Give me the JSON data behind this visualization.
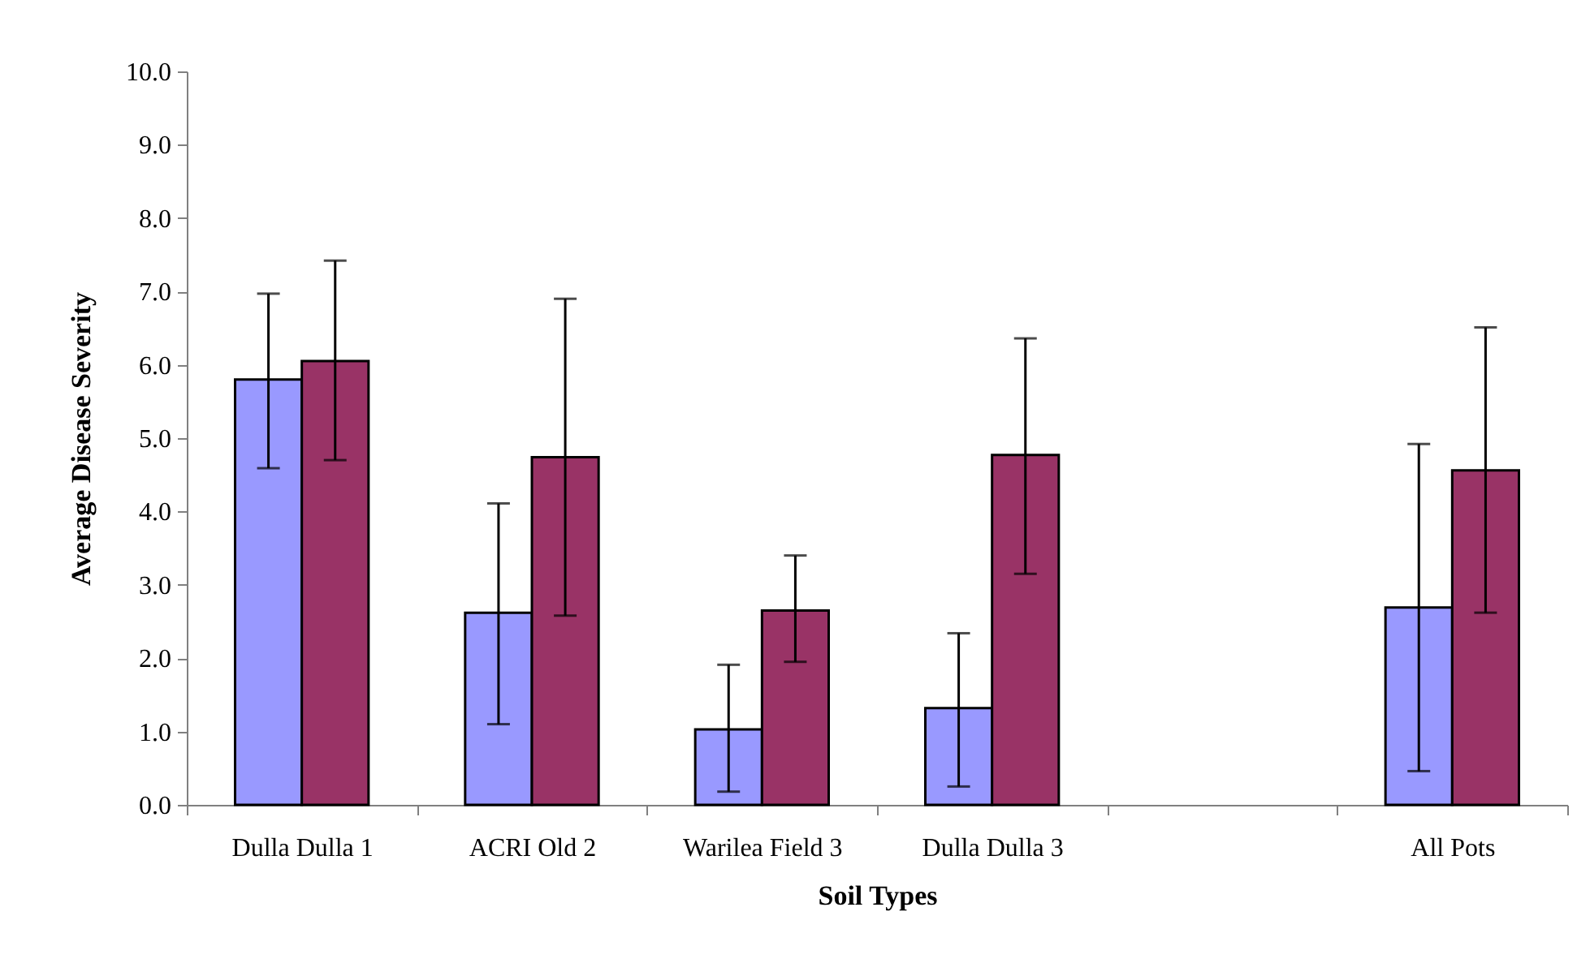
{
  "chart_data": {
    "type": "bar",
    "xlabel": "Soil Types",
    "ylabel": "Average Disease Severity",
    "categories": [
      "Dulla Dulla 1",
      "ACRI Old 2",
      "Warilea Field 3",
      "Dulla Dulla 3",
      null,
      "All Pots"
    ],
    "series": [
      {
        "color": "#9999ff",
        "values": [
          5.8,
          2.62,
          1.03,
          1.32,
          null,
          2.69
        ],
        "errors": [
          [
            4.59,
            6.97
          ],
          [
            1.1,
            4.11
          ],
          [
            0.18,
            1.91
          ],
          [
            0.25,
            2.34
          ],
          null,
          [
            0.46,
            4.92
          ]
        ]
      },
      {
        "color": "#993366",
        "values": [
          6.05,
          4.74,
          2.65,
          4.77,
          null,
          4.56
        ],
        "errors": [
          [
            4.7,
            7.42
          ],
          [
            2.58,
            6.9
          ],
          [
            1.95,
            3.4
          ],
          [
            3.15,
            6.36
          ],
          null,
          [
            2.62,
            6.51
          ]
        ]
      }
    ],
    "ylim": [
      0,
      10
    ],
    "yticks": [
      {
        "value": 0,
        "label": "0.0"
      },
      {
        "value": 1,
        "label": "1.0"
      },
      {
        "value": 2,
        "label": "2.0"
      },
      {
        "value": 3,
        "label": "3.0"
      },
      {
        "value": 4,
        "label": "4.0"
      },
      {
        "value": 5,
        "label": "5.0"
      },
      {
        "value": 6,
        "label": "6.0"
      },
      {
        "value": 7,
        "label": "7.0"
      },
      {
        "value": 8,
        "label": "8.0"
      },
      {
        "value": 9,
        "label": "9.0"
      },
      {
        "value": 10,
        "label": "10.0"
      }
    ]
  }
}
